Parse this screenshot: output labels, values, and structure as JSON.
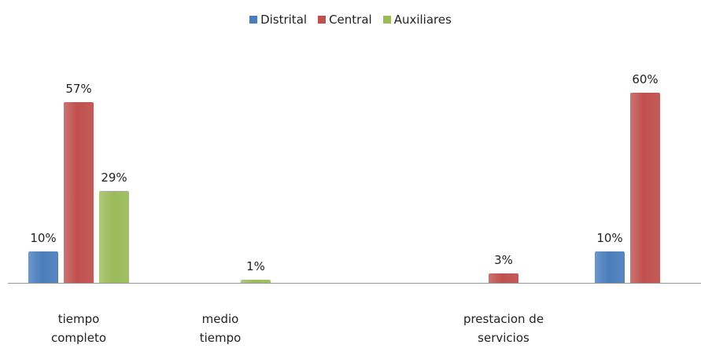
{
  "chart_data": {
    "type": "bar",
    "categories": [
      "tiempo completo",
      "medio tiempo",
      null,
      "prestacion de servicios",
      null
    ],
    "series": [
      {
        "name": "Distrital",
        "color": "#4a7ebb",
        "values": [
          10,
          null,
          null,
          null,
          10
        ],
        "value_labels": [
          "10%",
          null,
          null,
          null,
          "10%"
        ]
      },
      {
        "name": "Central",
        "color": "#c0504d",
        "values": [
          57,
          null,
          null,
          3,
          60
        ],
        "value_labels": [
          "57%",
          null,
          null,
          "3%",
          "60%"
        ]
      },
      {
        "name": "Auxiliares",
        "color": "#9bbb59",
        "values": [
          29,
          1,
          null,
          null,
          null
        ],
        "value_labels": [
          "29%",
          "1%",
          null,
          null,
          null
        ]
      }
    ],
    "legend": "top"
  }
}
